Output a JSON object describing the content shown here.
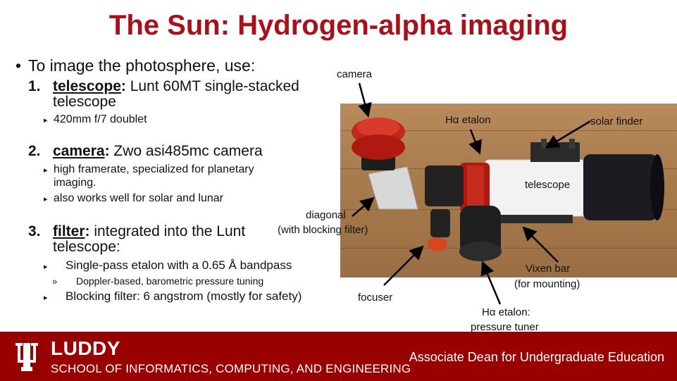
{
  "title": "The Sun: Hydrogen-alpha imaging",
  "intro": "To image the photosphere, use:",
  "items": [
    {
      "num": "1.",
      "keyword": "telescope",
      "line1": " Lunt 60MT single-stacked",
      "line2": "telescope",
      "subs": [
        "420mm f/7 doublet"
      ]
    },
    {
      "num": "2.",
      "keyword": "camera",
      "line1": " Zwo asi485mc camera",
      "subs": [
        "high framerate, specialized for planetary",
        "imaging.",
        "also works well for solar and lunar"
      ]
    },
    {
      "num": "3.",
      "keyword": "filter",
      "line1": " integrated into the Lunt",
      "line2": "telescope:",
      "subs": [
        "Single-pass etalon with a 0.65 Å bandpass",
        "Doppler-based, barometric pressure tuning",
        "Blocking filter: 6 angstrom (mostly for safety)"
      ]
    }
  ],
  "labels": {
    "camera": "camera",
    "ha_etalon": "Hα etalon",
    "solar_finder": "solar finder",
    "telescope": "telescope",
    "diagonal_1": "diagonal",
    "diagonal_2": "(with blocking filter)",
    "vixen_1": "Vixen bar",
    "vixen_2": "(for mounting)",
    "focuser": "focuser",
    "tuner_1": "Hα etalon:",
    "tuner_2": "pressure tuner"
  },
  "footer": {
    "brand": "LUDDY",
    "school": "SCHOOL OF INFORMATICS, COMPUTING, AND ENGINEERING",
    "role": "Associate Dean for Undergraduate Education"
  },
  "colors": {
    "title": "#a5121c",
    "footer_bg": "#990000"
  },
  "icons": [
    "iu-trident-logo"
  ]
}
